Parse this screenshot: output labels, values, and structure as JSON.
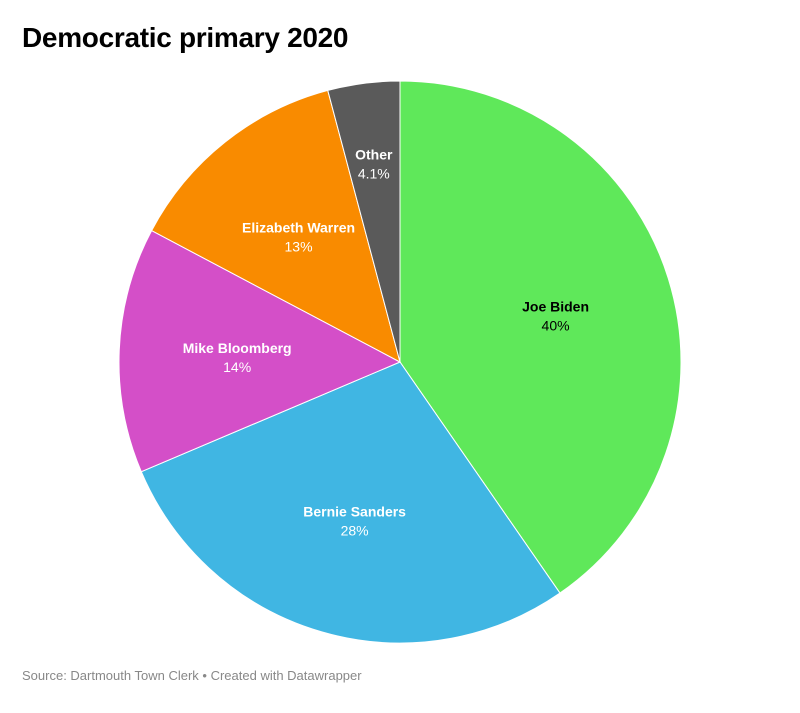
{
  "header": {
    "title": "Democratic primary 2020"
  },
  "footer": {
    "source_label": "Source: ",
    "source": "Dartmouth Town Clerk",
    "separator": " • ",
    "credit": "Created with Datawrapper"
  },
  "chart_data": {
    "type": "pie",
    "title": "Democratic primary 2020",
    "slices": [
      {
        "name": "Joe Biden",
        "value": 40,
        "label": "40%",
        "color": "#5fe85a",
        "text_color": "#000000"
      },
      {
        "name": "Bernie Sanders",
        "value": 28,
        "label": "28%",
        "color": "#40b6e3",
        "text_color": "#ffffff"
      },
      {
        "name": "Mike Bloomberg",
        "value": 14,
        "label": "14%",
        "color": "#d44fc8",
        "text_color": "#ffffff"
      },
      {
        "name": "Elizabeth Warren",
        "value": 13,
        "label": "13%",
        "color": "#f98b00",
        "text_color": "#ffffff"
      },
      {
        "name": "Other",
        "value": 4.1,
        "label": "4.1%",
        "color": "#5a5a5a",
        "text_color": "#ffffff"
      }
    ],
    "start": "12 o'clock",
    "direction": "clockwise"
  }
}
